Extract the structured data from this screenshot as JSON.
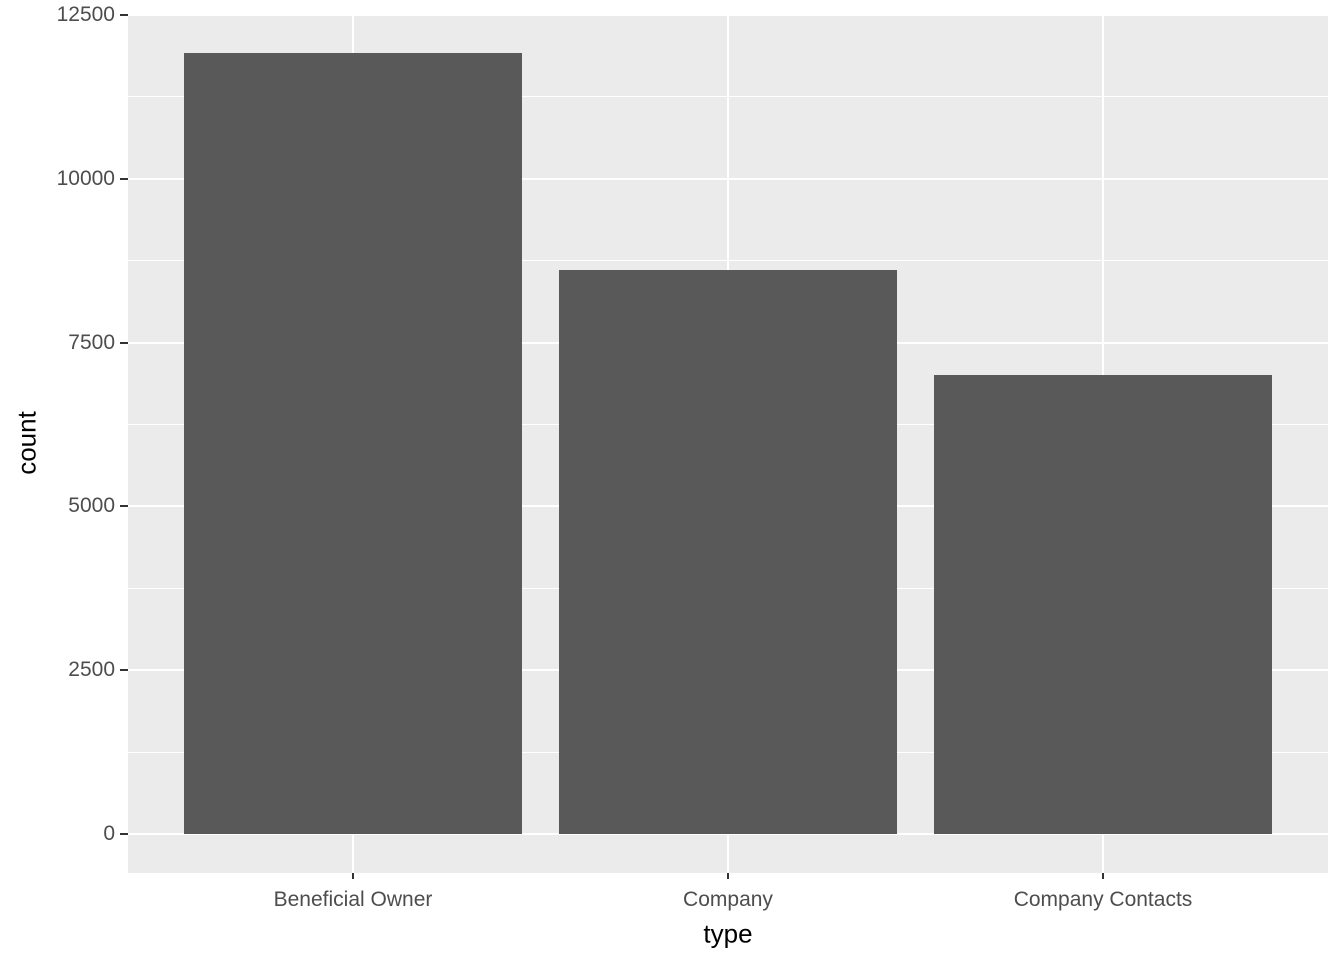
{
  "chart_data": {
    "type": "bar",
    "title": "",
    "categories": [
      "Beneficial Owner",
      "Company",
      "Company Contacts"
    ],
    "values": [
      11920,
      8610,
      7000
    ],
    "xlabel": "type",
    "ylabel": "count",
    "ylim": [
      0,
      12500
    ],
    "yticks": [
      0,
      2500,
      5000,
      7500,
      10000,
      12500
    ],
    "ytick_labels": [
      "0",
      "2500",
      "5000",
      "7500",
      "10000",
      "12500"
    ],
    "yminor_ticks": [
      1250,
      3750,
      6250,
      8750,
      11250
    ],
    "grid": true,
    "legend": false,
    "bar_width_fraction": 0.9,
    "colors": {
      "bar_fill": "#595959",
      "panel_background": "#EBEBEB",
      "gridline": "#FFFFFF",
      "tick_mark": "#333333",
      "tick_text": "#4D4D4D",
      "axis_title_text": "#000000",
      "figure_background": "#FFFFFF"
    }
  }
}
